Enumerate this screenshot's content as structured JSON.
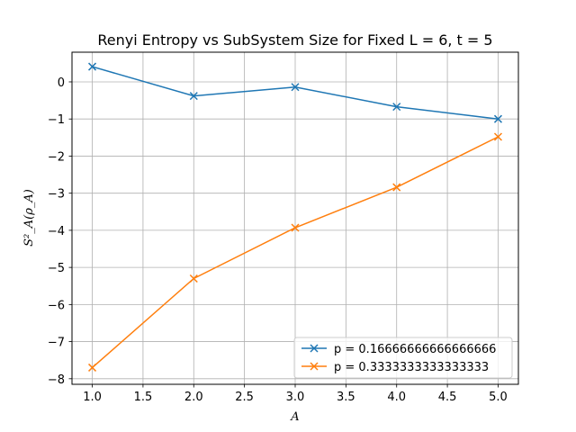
{
  "chart_data": {
    "type": "line",
    "title": "Renyi Entropy vs SubSystem Size for Fixed L = 6, t = 5",
    "xlabel": "A",
    "ylabel": "S²_A(ρ_A)",
    "x": [
      1.0,
      2.0,
      3.0,
      4.0,
      5.0
    ],
    "xlim": [
      0.8,
      5.2
    ],
    "ylim": [
      -8.15,
      0.8
    ],
    "xticks": [
      "1.0",
      "1.5",
      "2.0",
      "2.5",
      "3.0",
      "3.5",
      "4.0",
      "4.5",
      "5.0"
    ],
    "yticks": [
      "0",
      "−1",
      "−2",
      "−3",
      "−4",
      "−5",
      "−6",
      "−7",
      "−8"
    ],
    "grid": true,
    "legend_position": "lower-right",
    "marker": "x",
    "series": [
      {
        "name": "p = 0.16666666666666666",
        "color": "#1f77b4",
        "values": [
          0.41,
          -0.38,
          -0.14,
          -0.67,
          -1.0
        ]
      },
      {
        "name": "p = 0.3333333333333333",
        "color": "#ff7f0e",
        "values": [
          -7.7,
          -5.3,
          -3.93,
          -2.84,
          -1.48
        ]
      }
    ]
  }
}
